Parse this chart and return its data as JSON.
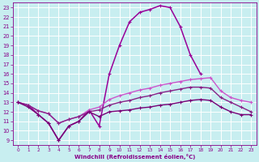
{
  "xlabel": "Windchill (Refroidissement éolien,°C)",
  "background_color": "#c8eef0",
  "grid_color": "#aadddd",
  "x_ticks": [
    0,
    1,
    2,
    3,
    4,
    5,
    6,
    7,
    8,
    9,
    10,
    11,
    12,
    13,
    14,
    15,
    16,
    17,
    18,
    19,
    20,
    21,
    22,
    23
  ],
  "y_ticks": [
    9,
    10,
    11,
    12,
    13,
    14,
    15,
    16,
    17,
    18,
    19,
    20,
    21,
    22,
    23
  ],
  "ylim": [
    8.5,
    23.5
  ],
  "xlim": [
    -0.5,
    23.5
  ],
  "series": [
    {
      "x": [
        0,
        1,
        2,
        3,
        4,
        5,
        6,
        7,
        8,
        9,
        10,
        11,
        12,
        13,
        14,
        15,
        16,
        17,
        18,
        19,
        20,
        21,
        22,
        23
      ],
      "y": [
        13.0,
        12.7,
        11.7,
        10.8,
        9.0,
        10.5,
        11.0,
        12.2,
        10.5,
        16.0,
        19.0,
        21.5,
        22.5,
        22.8,
        23.2,
        23.0,
        21.0,
        18.0,
        16.0,
        null,
        null,
        null,
        null,
        null
      ],
      "color": "#990099",
      "linewidth": 1.1,
      "marker": "+"
    },
    {
      "x": [
        0,
        1,
        2,
        3,
        4,
        5,
        6,
        7,
        8,
        9,
        10,
        11,
        12,
        13,
        14,
        15,
        16,
        17,
        18,
        19,
        20,
        21,
        22,
        23
      ],
      "y": [
        13.0,
        12.7,
        12.1,
        11.8,
        10.8,
        11.2,
        11.5,
        12.2,
        12.5,
        13.3,
        13.7,
        14.0,
        14.3,
        14.5,
        14.8,
        15.0,
        15.2,
        15.4,
        15.5,
        15.6,
        14.2,
        13.5,
        13.2,
        13.0
      ],
      "color": "#cc55cc",
      "linewidth": 1.0,
      "marker": "+"
    },
    {
      "x": [
        0,
        1,
        2,
        3,
        4,
        5,
        6,
        7,
        8,
        9,
        10,
        11,
        12,
        13,
        14,
        15,
        16,
        17,
        18,
        19,
        20,
        21,
        22,
        23
      ],
      "y": [
        13.0,
        12.7,
        12.1,
        11.8,
        10.8,
        11.2,
        11.5,
        12.0,
        12.2,
        12.7,
        13.0,
        13.2,
        13.5,
        13.7,
        14.0,
        14.2,
        14.4,
        14.6,
        14.6,
        14.5,
        13.5,
        13.0,
        12.5,
        12.0
      ],
      "color": "#882288",
      "linewidth": 1.0,
      "marker": "+"
    },
    {
      "x": [
        0,
        1,
        2,
        3,
        4,
        5,
        6,
        7,
        8,
        9,
        10,
        11,
        12,
        13,
        14,
        15,
        16,
        17,
        18,
        19,
        20,
        21,
        22,
        23
      ],
      "y": [
        13.0,
        12.5,
        11.7,
        10.8,
        9.0,
        10.5,
        11.0,
        12.0,
        11.5,
        12.0,
        12.1,
        12.2,
        12.4,
        12.5,
        12.7,
        12.8,
        13.0,
        13.2,
        13.3,
        13.2,
        12.5,
        12.0,
        11.7,
        11.7
      ],
      "color": "#770077",
      "linewidth": 1.0,
      "marker": "+"
    }
  ]
}
